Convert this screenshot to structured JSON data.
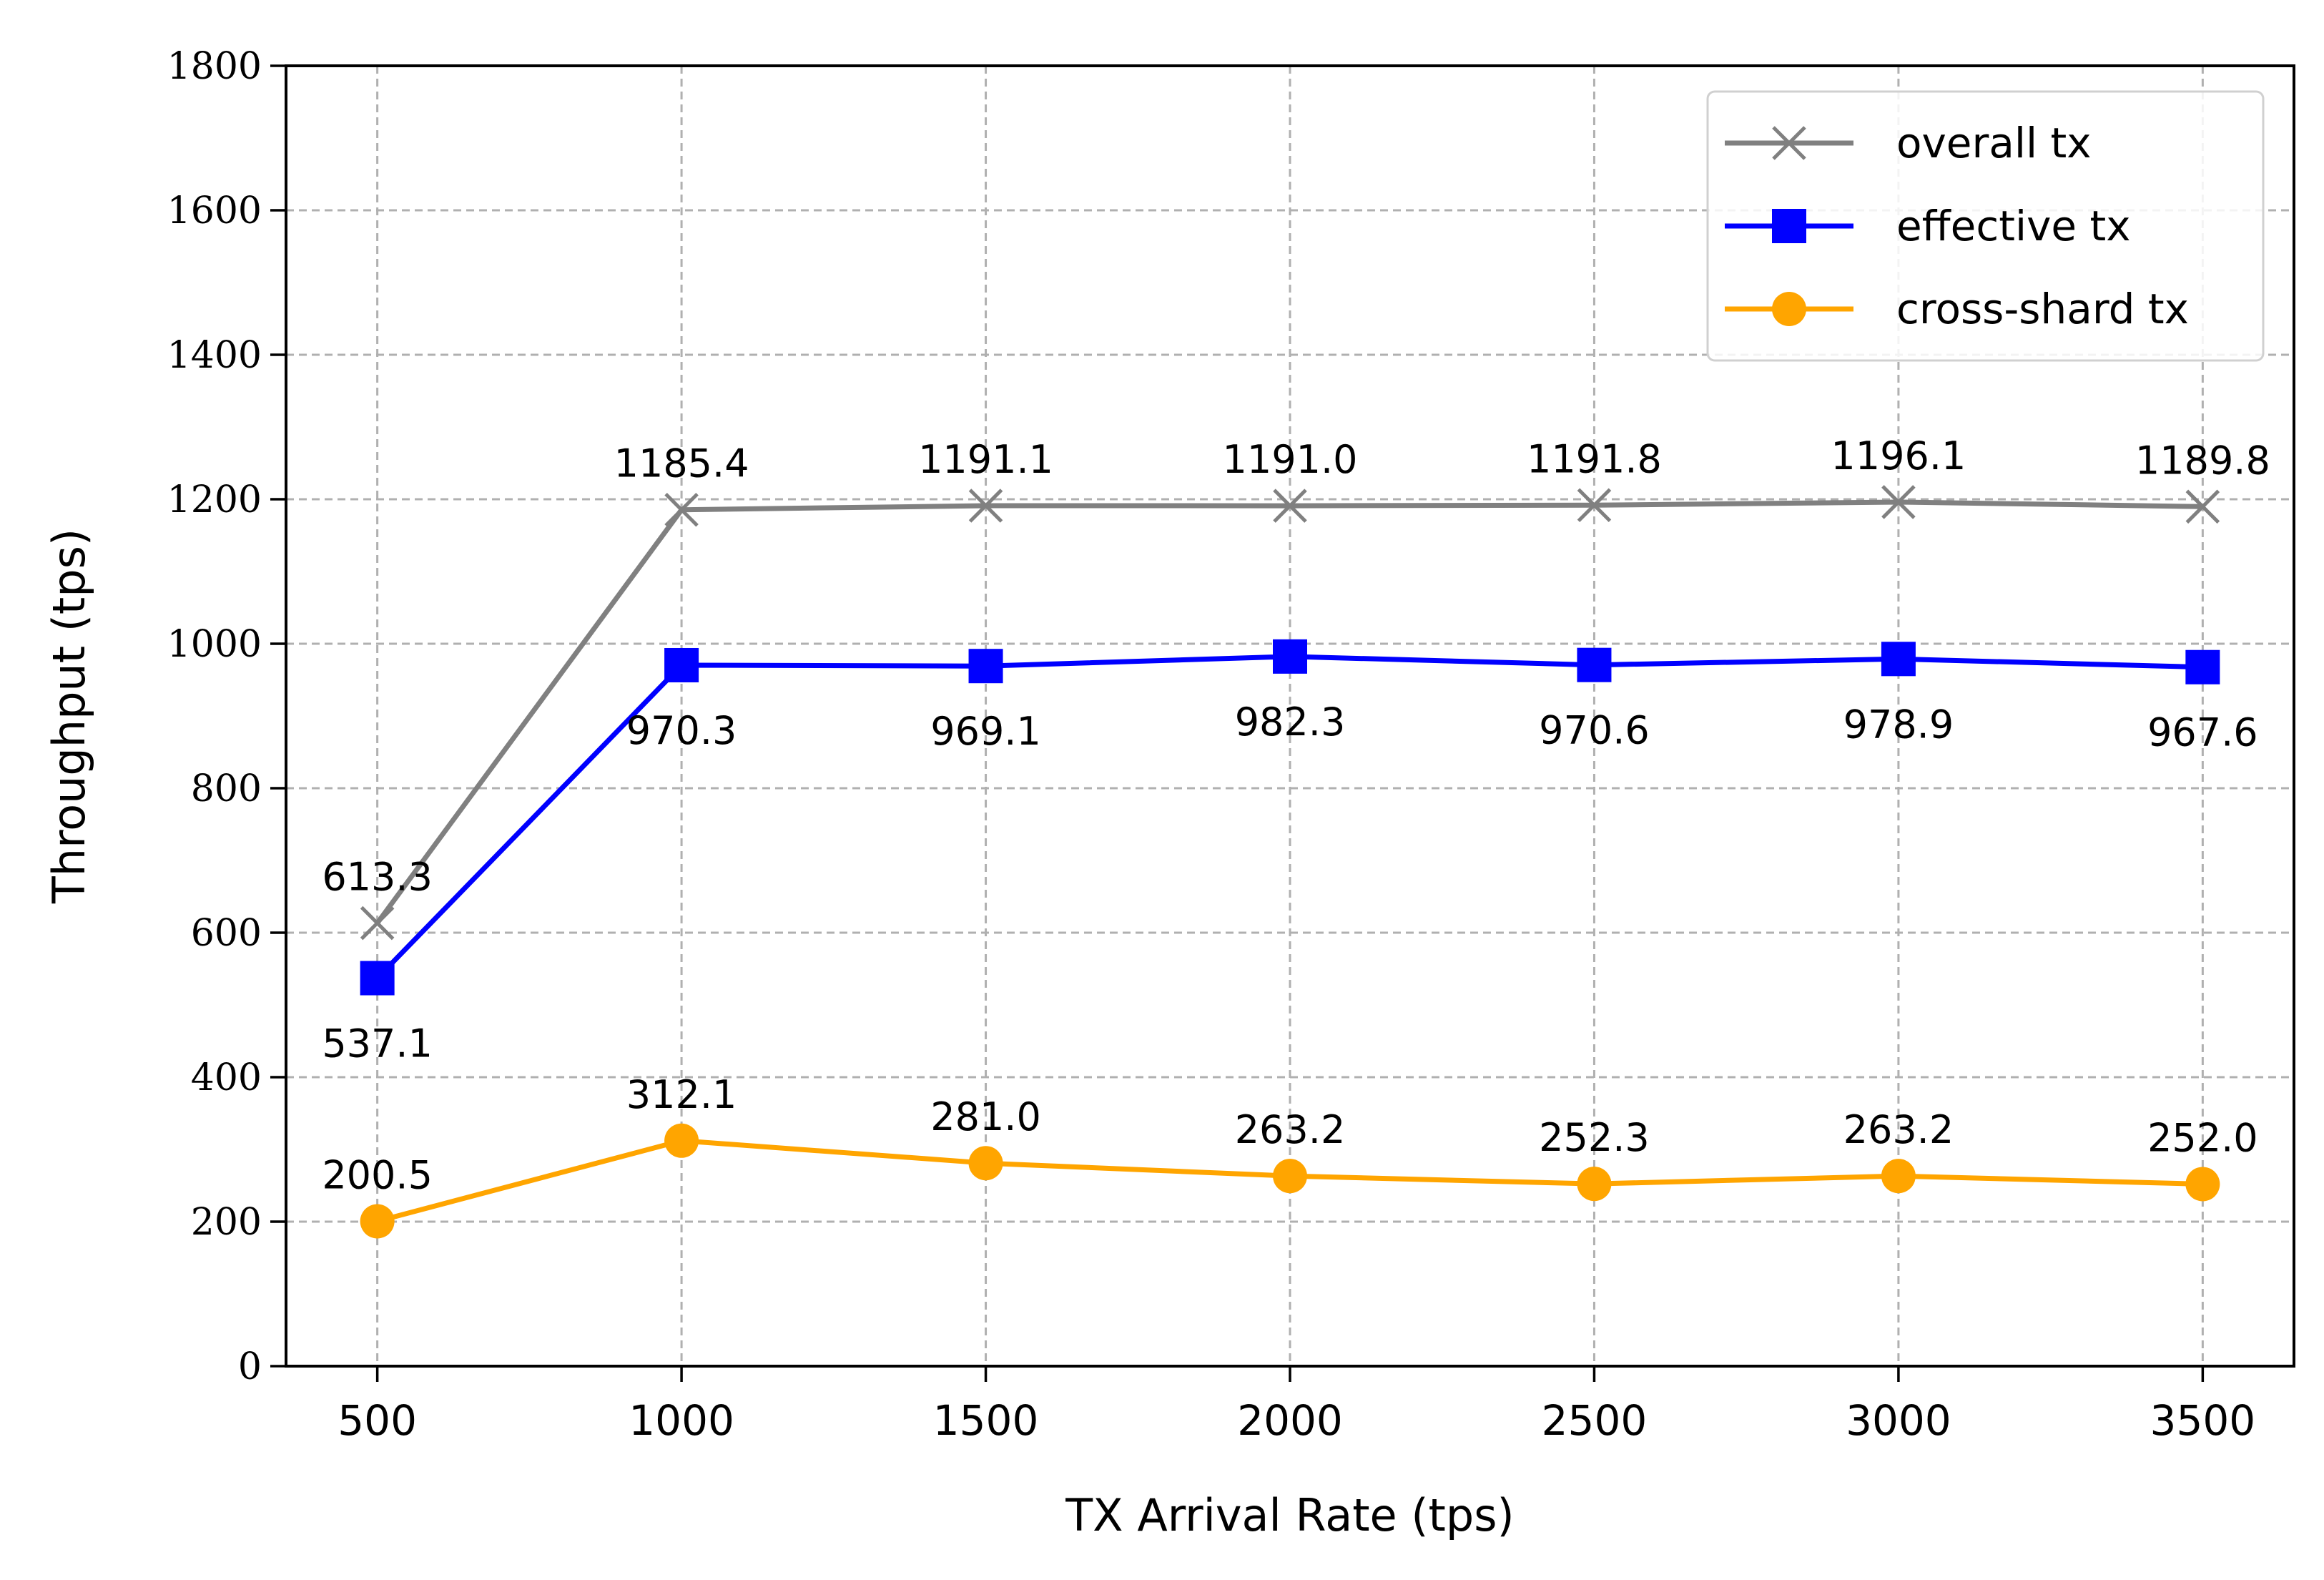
{
  "chart_data": {
    "type": "line",
    "xlabel": "TX Arrival Rate (tps)",
    "ylabel": "Throughput (tps)",
    "x": [
      500,
      1000,
      1500,
      2000,
      2500,
      3000,
      3500
    ],
    "x_tick_labels": [
      "500",
      "1000",
      "1500",
      "2000",
      "2500",
      "3000",
      "3500"
    ],
    "y_ticks": [
      0,
      200,
      400,
      600,
      800,
      1000,
      1200,
      1400,
      1600,
      1800
    ],
    "y_tick_labels": [
      "0",
      "200",
      "400",
      "600",
      "800",
      "1000",
      "1200",
      "1400",
      "1600",
      "1800"
    ],
    "xlim": [
      350,
      3650
    ],
    "ylim": [
      0,
      1800
    ],
    "grid": true,
    "legend_position": "top-right",
    "series": [
      {
        "name": "overall tx",
        "color": "#808080",
        "marker": "x",
        "values": [
          613.3,
          1185.4,
          1191.1,
          1191.0,
          1191.8,
          1196.1,
          1189.8
        ],
        "labels": [
          "613.3",
          "1185.4",
          "1191.1",
          "1191.0",
          "1191.8",
          "1196.1",
          "1189.8"
        ],
        "label_position": "above"
      },
      {
        "name": "effective tx",
        "color": "#0000ff",
        "marker": "square",
        "values": [
          537.1,
          970.3,
          969.1,
          982.3,
          970.6,
          978.9,
          967.6
        ],
        "labels": [
          "537.1",
          "970.3",
          "969.1",
          "982.3",
          "970.6",
          "978.9",
          "967.6"
        ],
        "label_position": "below"
      },
      {
        "name": "cross-shard tx",
        "color": "#ffa500",
        "marker": "circle",
        "values": [
          200.5,
          312.1,
          281.0,
          263.2,
          252.3,
          263.2,
          252.0
        ],
        "labels": [
          "200.5",
          "312.1",
          "281.0",
          "263.2",
          "252.3",
          "263.2",
          "252.0"
        ],
        "label_position": "above"
      }
    ]
  }
}
